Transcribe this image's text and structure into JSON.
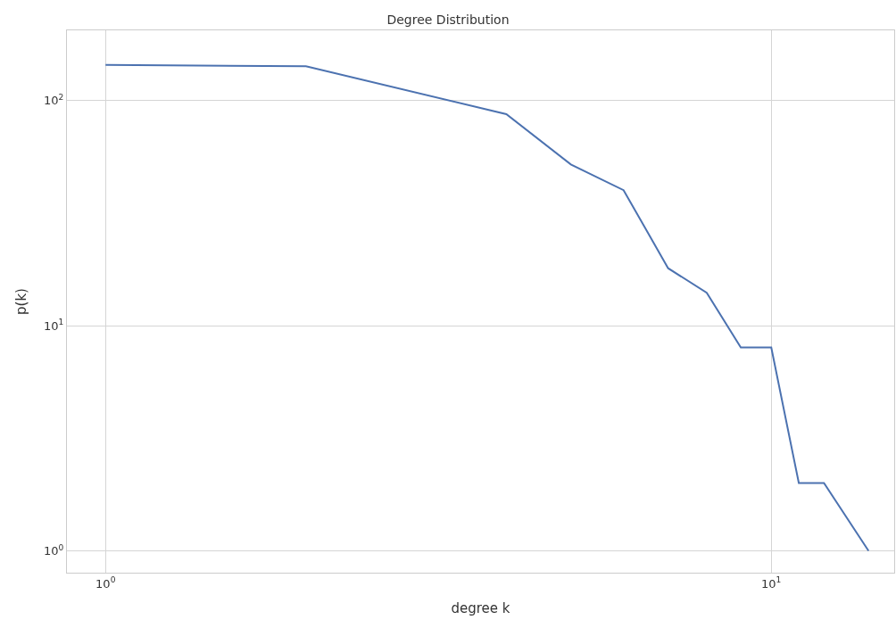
{
  "chart_data": {
    "type": "line",
    "title": "Degree Distribution",
    "xlabel": "degree k",
    "ylabel": "p(k)",
    "x": [
      1,
      2,
      4,
      5,
      6,
      7,
      8,
      9,
      10,
      11,
      12,
      14
    ],
    "series": [
      {
        "color": "#4c72b0",
        "values": [
          144,
          142,
          87,
          52,
          40,
          18,
          14,
          8,
          8,
          2,
          2,
          1
        ]
      }
    ],
    "log": "xy",
    "xlim": [
      0.875,
      15.3
    ],
    "ylim": [
      0.8,
      205
    ],
    "xticks": [
      {
        "value": 1,
        "label": "10$^{0}$"
      },
      {
        "value": 10,
        "label": "10$^{1}$"
      }
    ],
    "yticks": [
      {
        "value": 1,
        "label": "10$^{0}$"
      },
      {
        "value": 10,
        "label": "10$^{1}$"
      },
      {
        "value": 100,
        "label": "10$^{2}$"
      }
    ],
    "grid": true,
    "marker": "none",
    "line_style": "solid"
  }
}
